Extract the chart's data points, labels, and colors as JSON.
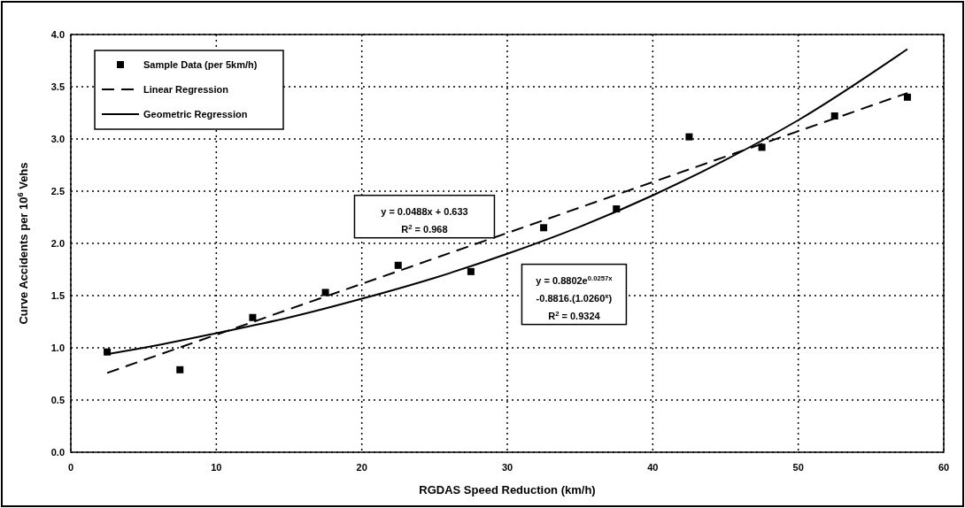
{
  "chart_data": {
    "type": "scatter",
    "xlabel": "RGDAS Speed Reduction (km/h)",
    "ylabel": "Curve Accidents per 10$^{6}$ Vehs",
    "xlim": [
      0,
      60
    ],
    "xticks": [
      0,
      10,
      20,
      30,
      40,
      50,
      60
    ],
    "ylim": [
      0,
      4
    ],
    "yticks": [
      {
        "value": 0,
        "label": "0.0"
      },
      {
        "value": 0.5,
        "label": "0.5"
      },
      {
        "value": 1,
        "label": "1.0"
      },
      {
        "value": 1.5,
        "label": "1.5"
      },
      {
        "value": 2,
        "label": "2.0"
      },
      {
        "value": 2.5,
        "label": "2.5"
      },
      {
        "value": 3,
        "label": "3.0"
      },
      {
        "value": 3.5,
        "label": "3.5"
      },
      {
        "value": 4,
        "label": "4.0"
      }
    ],
    "grid": true,
    "legend": "top left",
    "series": [
      {
        "name": "Sample Data (per 5km/h)",
        "type": "scatter",
        "marker": "square",
        "color": "#000000",
        "x": [
          2.5,
          7.5,
          12.5,
          17.5,
          22.5,
          27.5,
          32.5,
          37.5,
          42.5,
          47.5,
          52.5,
          57.5
        ],
        "values": [
          0.96,
          0.79,
          1.29,
          1.53,
          1.79,
          1.73,
          2.15,
          2.33,
          3.02,
          2.92,
          3.22,
          3.4
        ]
      },
      {
        "name": "Linear Regression",
        "type": "line",
        "line_style": "dashed",
        "marker": "none",
        "color": "#000000",
        "x": [
          2.5,
          57.5
        ],
        "values": [
          0.76,
          3.44
        ]
      },
      {
        "name": "Geometric Regression",
        "type": "line",
        "line_style": "solid",
        "marker": "none",
        "color": "#000000",
        "x": [
          2.5,
          5,
          10,
          15,
          20,
          25,
          30,
          35,
          40,
          45,
          50,
          57.5
        ],
        "values": [
          0.94,
          1.0,
          1.14,
          1.29,
          1.47,
          1.67,
          1.9,
          2.16,
          2.46,
          2.8,
          3.18,
          3.86
        ]
      }
    ],
    "annotations": [
      "y = 0.0488x + 0.633\nR$^{2}$ = 0.968",
      "y = 0.8802e$^{0.0257x}$\n-0.8816.(1.0260$^{x}$)\nR$^{2}$ = 0.9324"
    ]
  }
}
